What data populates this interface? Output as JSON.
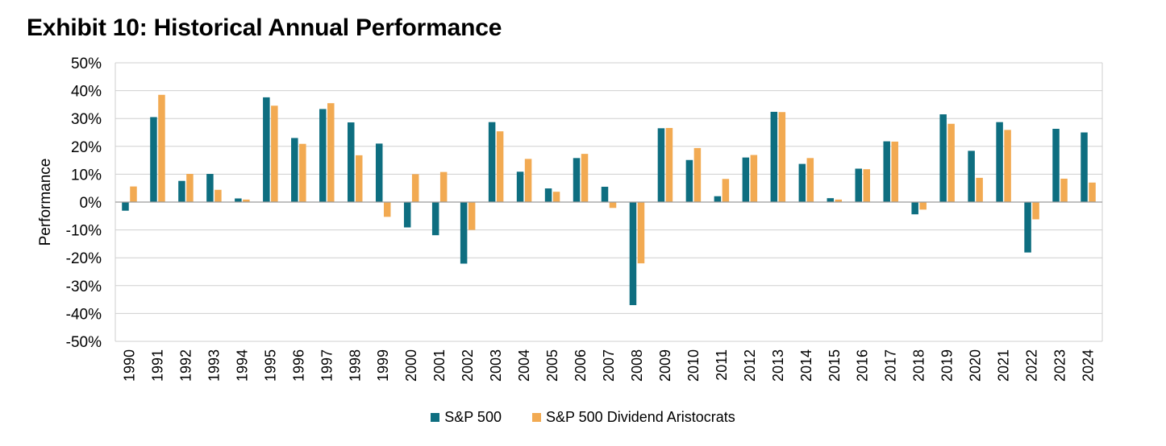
{
  "title": "Exhibit 10: Historical Annual Performance",
  "colors": {
    "sp500": "#0e6e80",
    "aristocrats": "#f2aa52",
    "grid": "#cfcfcf",
    "axis": "#9a9a9a"
  },
  "chart_data": {
    "type": "bar",
    "title": "Exhibit 10: Historical Annual Performance",
    "xlabel": "",
    "ylabel": "Performance",
    "ylim": [
      -50,
      50
    ],
    "ytick_step": 10,
    "ytick_labels": [
      "50%",
      "40%",
      "30%",
      "20%",
      "10%",
      "0%",
      "-10%",
      "-20%",
      "-30%",
      "-40%",
      "-50%"
    ],
    "grid": true,
    "legend_position": "bottom",
    "categories": [
      "1990",
      "1991",
      "1992",
      "1993",
      "1994",
      "1995",
      "1996",
      "1997",
      "1998",
      "1999",
      "2000",
      "2001",
      "2002",
      "2003",
      "2004",
      "2005",
      "2006",
      "2007",
      "2008",
      "2009",
      "2010",
      "2011",
      "2012",
      "2013",
      "2014",
      "2015",
      "2016",
      "2017",
      "2018",
      "2019",
      "2020",
      "2021",
      "2022",
      "2023",
      "2024"
    ],
    "series": [
      {
        "name": "S&P 500",
        "values": [
          -3.1,
          30.5,
          7.6,
          10.1,
          1.3,
          37.6,
          23.0,
          33.4,
          28.6,
          21.0,
          -9.1,
          -11.9,
          -22.1,
          28.7,
          10.9,
          4.9,
          15.8,
          5.5,
          -37.0,
          26.5,
          15.1,
          2.1,
          16.0,
          32.4,
          13.7,
          1.4,
          12.0,
          21.8,
          -4.4,
          31.5,
          18.4,
          28.7,
          -18.1,
          26.3,
          25.0
        ]
      },
      {
        "name": "S&P 500 Dividend Aristocrats",
        "values": [
          5.6,
          38.5,
          10.1,
          4.4,
          0.9,
          34.6,
          20.9,
          35.5,
          16.8,
          -5.3,
          10.0,
          10.8,
          -10.0,
          25.4,
          15.5,
          3.7,
          17.3,
          -2.1,
          -22.0,
          26.6,
          19.4,
          8.3,
          16.9,
          32.3,
          15.8,
          0.9,
          11.8,
          21.7,
          -2.7,
          28.1,
          8.7,
          25.9,
          -6.2,
          8.4,
          7.0
        ]
      }
    ]
  }
}
